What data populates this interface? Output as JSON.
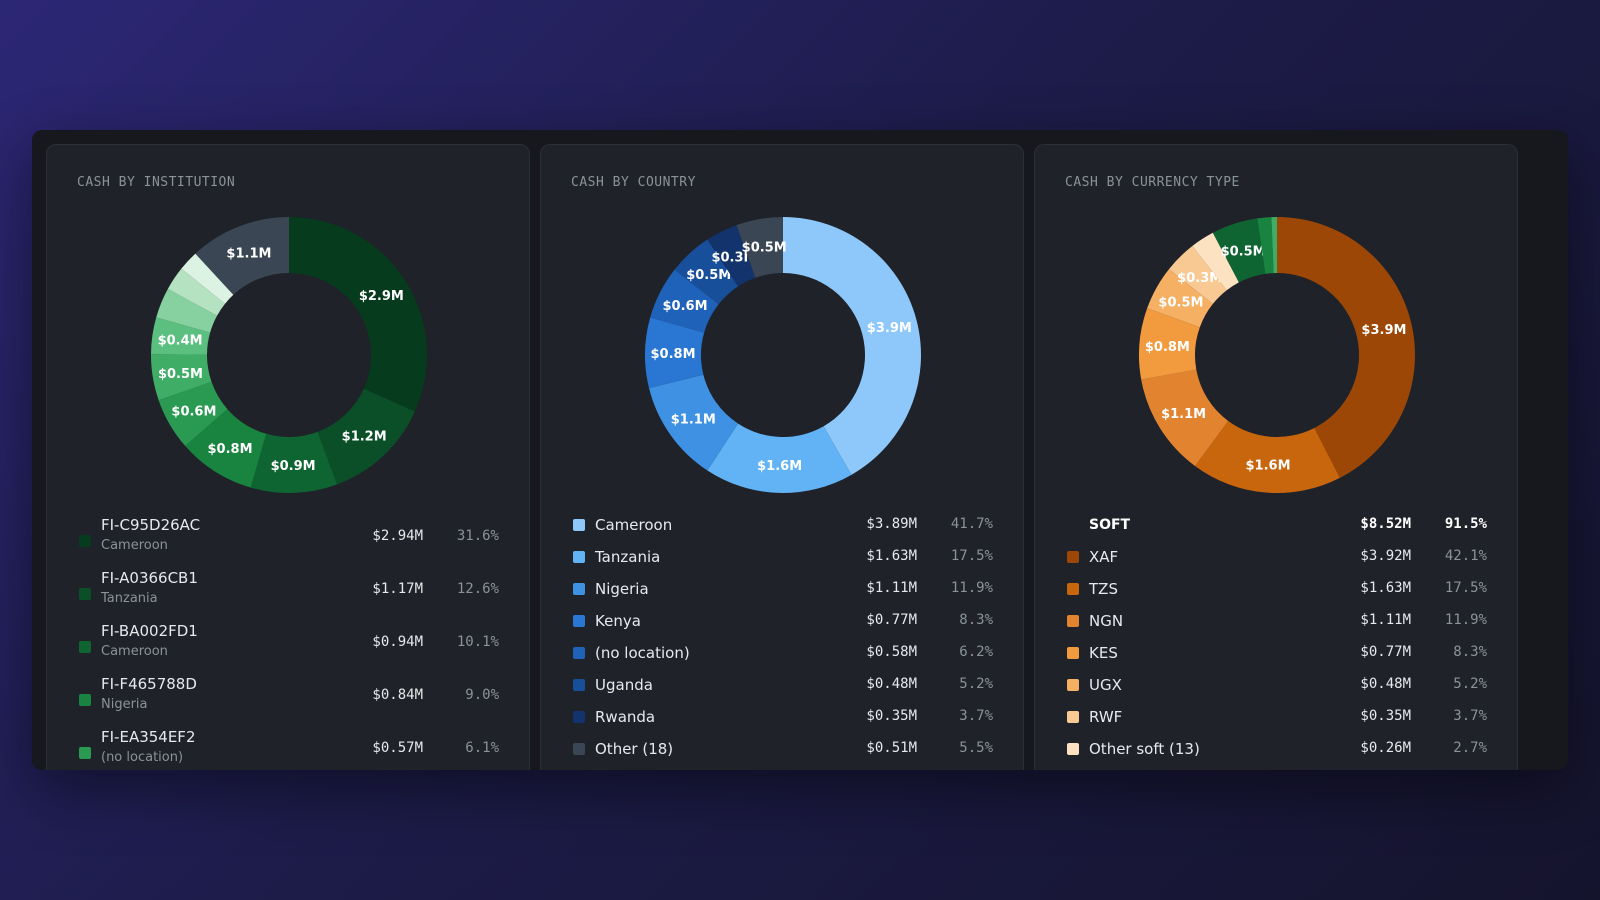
{
  "chart_data": [
    {
      "type": "pie",
      "title": "CASH BY INSTITUTION",
      "slices": [
        {
          "label": "$2.9M",
          "value": 2.94,
          "color": "#063b1d"
        },
        {
          "label": "$1.2M",
          "value": 1.17,
          "color": "#0a4f27"
        },
        {
          "label": "$0.9M",
          "value": 0.94,
          "color": "#0f6532"
        },
        {
          "label": "$0.8M",
          "value": 0.84,
          "color": "#19843f"
        },
        {
          "label": "$0.6M",
          "value": 0.57,
          "color": "#2a9a52"
        },
        {
          "label": "$0.5M",
          "value": 0.5,
          "color": "#3fad66"
        },
        {
          "label": "$0.4M",
          "value": 0.4,
          "color": "#5bc07f"
        },
        {
          "label": "",
          "value": 0.33,
          "color": "#86d19f"
        },
        {
          "label": "",
          "value": 0.26,
          "color": "#b5e3c2"
        },
        {
          "label": "",
          "value": 0.22,
          "color": "#dcf2e2"
        },
        {
          "label": "$1.1M",
          "value": 1.1,
          "color": "#3a4653"
        }
      ],
      "legend": [
        {
          "name": "FI-C95D26AC",
          "sub": "Cameroon",
          "amount": "$2.94M",
          "pct": "31.6%",
          "color": "#063b1d"
        },
        {
          "name": "FI-A0366CB1",
          "sub": "Tanzania",
          "amount": "$1.17M",
          "pct": "12.6%",
          "color": "#0a4f27"
        },
        {
          "name": "FI-BA002FD1",
          "sub": "Cameroon",
          "amount": "$0.94M",
          "pct": "10.1%",
          "color": "#0f6532"
        },
        {
          "name": "FI-F465788D",
          "sub": "Nigeria",
          "amount": "$0.84M",
          "pct": "9.0%",
          "color": "#19843f"
        },
        {
          "name": "FI-EA354EF2",
          "sub": "(no location)",
          "amount": "$0.57M",
          "pct": "6.1%",
          "color": "#2a9a52"
        }
      ]
    },
    {
      "type": "pie",
      "title": "CASH BY COUNTRY",
      "slices": [
        {
          "label": "$3.9M",
          "value": 3.89,
          "color": "#8ec8fb"
        },
        {
          "label": "$1.6M",
          "value": 1.63,
          "color": "#62b3f5"
        },
        {
          "label": "$1.1M",
          "value": 1.11,
          "color": "#3f91e3"
        },
        {
          "label": "$0.8M",
          "value": 0.77,
          "color": "#2977d2"
        },
        {
          "label": "$0.6M",
          "value": 0.58,
          "color": "#1f62b9"
        },
        {
          "label": "$0.5M",
          "value": 0.48,
          "color": "#184f9b"
        },
        {
          "label": "$0.3M",
          "value": 0.35,
          "color": "#12336b"
        },
        {
          "label": "$0.5M",
          "value": 0.51,
          "color": "#3a4653"
        }
      ],
      "legend": [
        {
          "name": "Cameroon",
          "amount": "$3.89M",
          "pct": "41.7%",
          "color": "#8ec8fb"
        },
        {
          "name": "Tanzania",
          "amount": "$1.63M",
          "pct": "17.5%",
          "color": "#62b3f5"
        },
        {
          "name": "Nigeria",
          "amount": "$1.11M",
          "pct": "11.9%",
          "color": "#3f91e3"
        },
        {
          "name": "Kenya",
          "amount": "$0.77M",
          "pct": "8.3%",
          "color": "#2977d2"
        },
        {
          "name": "(no location)",
          "amount": "$0.58M",
          "pct": "6.2%",
          "color": "#1f62b9"
        },
        {
          "name": "Uganda",
          "amount": "$0.48M",
          "pct": "5.2%",
          "color": "#184f9b"
        },
        {
          "name": "Rwanda",
          "amount": "$0.35M",
          "pct": "3.7%",
          "color": "#12336b"
        },
        {
          "name": "Other (18)",
          "amount": "$0.51M",
          "pct": "5.5%",
          "color": "#3a4653"
        }
      ]
    },
    {
      "type": "pie",
      "title": "CASH BY CURRENCY TYPE",
      "slices": [
        {
          "label": "$3.9M",
          "value": 3.92,
          "color": "#9c4706"
        },
        {
          "label": "$1.6M",
          "value": 1.63,
          "color": "#c8660e"
        },
        {
          "label": "$1.1M",
          "value": 1.11,
          "color": "#e2842f"
        },
        {
          "label": "$0.8M",
          "value": 0.77,
          "color": "#f29a3e"
        },
        {
          "label": "$0.5M",
          "value": 0.48,
          "color": "#f6b063"
        },
        {
          "label": "$0.3M",
          "value": 0.35,
          "color": "#f9c994"
        },
        {
          "label": "",
          "value": 0.26,
          "color": "#fde2c2"
        },
        {
          "label": "$0.5M",
          "value": 0.5,
          "color": "#0f6532"
        },
        {
          "label": "",
          "value": 0.15,
          "color": "#19843f"
        },
        {
          "label": "",
          "value": 0.06,
          "color": "#3fad66"
        }
      ],
      "legend": [
        {
          "name": "SOFT",
          "amount": "$8.52M",
          "pct": "91.5%",
          "color": "",
          "header": true
        },
        {
          "name": "XAF",
          "amount": "$3.92M",
          "pct": "42.1%",
          "color": "#9c4706"
        },
        {
          "name": "TZS",
          "amount": "$1.63M",
          "pct": "17.5%",
          "color": "#c8660e"
        },
        {
          "name": "NGN",
          "amount": "$1.11M",
          "pct": "11.9%",
          "color": "#e2842f"
        },
        {
          "name": "KES",
          "amount": "$0.77M",
          "pct": "8.3%",
          "color": "#f29a3e"
        },
        {
          "name": "UGX",
          "amount": "$0.48M",
          "pct": "5.2%",
          "color": "#f6b063"
        },
        {
          "name": "RWF",
          "amount": "$0.35M",
          "pct": "3.7%",
          "color": "#f9c994"
        },
        {
          "name": "Other soft (13)",
          "amount": "$0.26M",
          "pct": "2.7%",
          "color": "#fde2c2"
        }
      ]
    }
  ]
}
